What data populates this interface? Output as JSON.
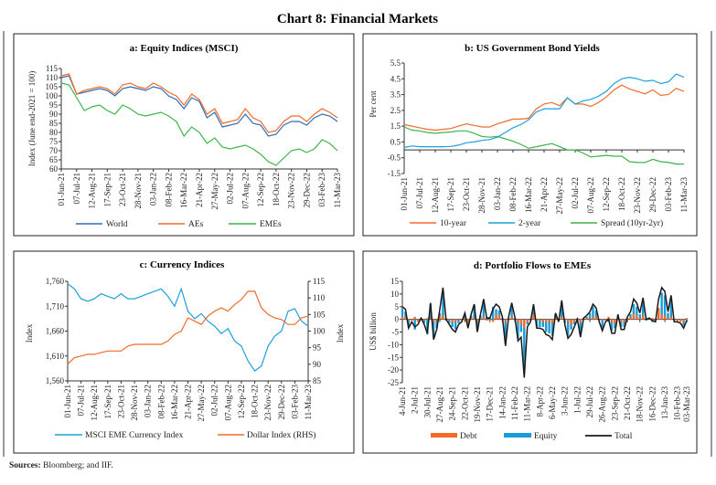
{
  "title": "Chart 8: Financial Markets",
  "sources_label": "Sources:",
  "sources_text": " Bloomberg; and IIF.",
  "chart_data": [
    {
      "type": "line",
      "title": "a: Equity Indices (MSCI)",
      "ylabel": "Index (June end-2021 = 100)",
      "ylim": [
        60,
        115
      ],
      "yticks": [
        60,
        65,
        70,
        75,
        80,
        85,
        90,
        95,
        100,
        105,
        110,
        115
      ],
      "xtick_labels": [
        "01-Jun-21",
        "07-Jul-21",
        "12-Aug-21",
        "17-Sep-21",
        "23-Oct-21",
        "28-Nov-21",
        "03-Jan-22",
        "08-Feb-22",
        "16-Mar-22",
        "21-Apr-22",
        "27-May-22",
        "02-Jul-22",
        "07-Aug-22",
        "12-Sep-22",
        "18-Oct-22",
        "23-Nov-22",
        "29-Dec-22",
        "03-Feb-23",
        "11-Mar-23"
      ],
      "x": [
        "2021-06-01",
        "2021-06-19",
        "2021-07-07",
        "2021-07-25",
        "2021-08-12",
        "2021-08-30",
        "2021-09-17",
        "2021-10-05",
        "2021-10-23",
        "2021-11-10",
        "2021-11-28",
        "2021-12-16",
        "2022-01-03",
        "2022-01-21",
        "2022-02-08",
        "2022-02-26",
        "2022-03-16",
        "2022-04-03",
        "2022-04-21",
        "2022-05-09",
        "2022-05-27",
        "2022-06-14",
        "2022-07-02",
        "2022-07-20",
        "2022-08-07",
        "2022-08-25",
        "2022-09-12",
        "2022-09-30",
        "2022-10-18",
        "2022-11-05",
        "2022-11-23",
        "2022-12-11",
        "2022-12-29",
        "2023-01-16",
        "2023-02-03",
        "2023-02-21",
        "2023-03-11"
      ],
      "legend_position": "bottom",
      "series": [
        {
          "name": "World",
          "color": "#2f6db5",
          "values": [
            110,
            111,
            101,
            102,
            103,
            104,
            103,
            100,
            104,
            105,
            104,
            103,
            105,
            104,
            100,
            98,
            93,
            99,
            97,
            88,
            91,
            83,
            84,
            85,
            90,
            85,
            84,
            78,
            79,
            84,
            86,
            86,
            84,
            88,
            90,
            89,
            86
          ]
        },
        {
          "name": "AEs",
          "color": "#f26b2a",
          "values": [
            111,
            112,
            101,
            103,
            104,
            105,
            104,
            101,
            106,
            107,
            105,
            104,
            107,
            105,
            102,
            100,
            95,
            101,
            98,
            90,
            93,
            85,
            86,
            87,
            93,
            88,
            86,
            80,
            81,
            86,
            89,
            89,
            86,
            90,
            93,
            91,
            88
          ]
        },
        {
          "name": "EMEs",
          "color": "#3cb44b",
          "values": [
            107,
            106,
            99,
            92,
            94,
            95,
            92,
            90,
            95,
            93,
            90,
            89,
            90,
            91,
            89,
            86,
            78,
            83,
            80,
            74,
            77,
            72,
            71,
            72,
            73,
            71,
            68,
            64,
            62,
            66,
            70,
            71,
            69,
            71,
            76,
            74,
            70
          ]
        }
      ]
    },
    {
      "type": "line",
      "title": "b: US  Government Bond Yields",
      "ylabel": "Per cent",
      "ylim": [
        -1.5,
        5.5
      ],
      "yticks": [
        -1.5,
        -0.5,
        0.5,
        1.5,
        2.5,
        3.5,
        4.5,
        5.5
      ],
      "xtick_labels": [
        "01-Jun-21",
        "07-Jul-21",
        "12-Aug-21",
        "17-Sep-21",
        "23-Oct-21",
        "28-Nov-21",
        "03-Jan-22",
        "08-Feb-22",
        "16-Mar-22",
        "21-Apr-22",
        "27-May-22",
        "02-Jul-22",
        "07-Aug-22",
        "12-Sep-22",
        "18-Oct-22",
        "23-Nov-22",
        "29-Dec-22",
        "03-Feb-23",
        "11-Mar-23"
      ],
      "x": [
        "2021-06-01",
        "2021-06-19",
        "2021-07-07",
        "2021-07-25",
        "2021-08-12",
        "2021-08-30",
        "2021-09-17",
        "2021-10-05",
        "2021-10-23",
        "2021-11-10",
        "2021-11-28",
        "2021-12-16",
        "2022-01-03",
        "2022-01-21",
        "2022-02-08",
        "2022-02-26",
        "2022-03-16",
        "2022-04-03",
        "2022-04-21",
        "2022-05-09",
        "2022-05-27",
        "2022-06-14",
        "2022-07-02",
        "2022-07-20",
        "2022-08-07",
        "2022-08-25",
        "2022-09-12",
        "2022-09-30",
        "2022-10-18",
        "2022-11-05",
        "2022-11-23",
        "2022-12-11",
        "2022-12-29",
        "2023-01-16",
        "2023-02-03",
        "2023-02-21",
        "2023-03-11"
      ],
      "legend_position": "bottom",
      "series": [
        {
          "name": "10-year",
          "color": "#f26b2a",
          "values": [
            1.6,
            1.5,
            1.4,
            1.3,
            1.25,
            1.3,
            1.35,
            1.5,
            1.65,
            1.55,
            1.45,
            1.45,
            1.65,
            1.8,
            1.95,
            1.95,
            2.0,
            2.6,
            2.9,
            3.0,
            2.8,
            3.3,
            2.9,
            2.9,
            2.75,
            3.0,
            3.35,
            3.8,
            4.1,
            3.85,
            3.7,
            3.55,
            3.8,
            3.45,
            3.5,
            3.9,
            3.7
          ]
        },
        {
          "name": "2-year",
          "color": "#1ea0dc",
          "values": [
            0.15,
            0.25,
            0.2,
            0.2,
            0.2,
            0.2,
            0.22,
            0.3,
            0.45,
            0.5,
            0.6,
            0.65,
            0.8,
            1.1,
            1.4,
            1.6,
            1.9,
            2.4,
            2.6,
            2.6,
            2.6,
            3.3,
            2.9,
            3.1,
            3.2,
            3.4,
            3.7,
            4.2,
            4.5,
            4.6,
            4.5,
            4.35,
            4.4,
            4.2,
            4.3,
            4.8,
            4.6
          ]
        },
        {
          "name": "Spread (10yr-2yr)",
          "color": "#3cb44b",
          "values": [
            1.45,
            1.25,
            1.2,
            1.1,
            1.05,
            1.1,
            1.13,
            1.2,
            1.2,
            1.05,
            0.85,
            0.8,
            0.85,
            0.7,
            0.55,
            0.35,
            0.1,
            0.2,
            0.3,
            0.4,
            0.2,
            0.0,
            0.0,
            -0.2,
            -0.45,
            -0.4,
            -0.35,
            -0.4,
            -0.4,
            -0.75,
            -0.8,
            -0.8,
            -0.6,
            -0.75,
            -0.8,
            -0.9,
            -0.9
          ]
        }
      ]
    },
    {
      "type": "line",
      "title": "c: Currency Indices",
      "ylabel": "Index",
      "ylabel_right": "Index",
      "ylim": [
        1560,
        1760
      ],
      "yticks": [
        "1,560",
        "1,610",
        "1,660",
        "1,710",
        "1,760"
      ],
      "ylim_right": [
        85,
        115
      ],
      "yticks_right": [
        85,
        90,
        95,
        100,
        105,
        110,
        115
      ],
      "xtick_labels": [
        "01-Jun-21",
        "07-Jul-21",
        "12-Aug-21",
        "17-Sep-21",
        "23-Oct-21",
        "28-Nov-21",
        "03-Jan-22",
        "08-Feb-22",
        "16-Mar-22",
        "21-Apr-22",
        "27-May-22",
        "02-Jul-22",
        "07-Aug-22",
        "12-Sep-22",
        "18-Oct-22",
        "23-Nov-22",
        "29-Dec-22",
        "03-Feb-23",
        "11-Mar-23"
      ],
      "x": [
        "2021-06-01",
        "2021-06-19",
        "2021-07-07",
        "2021-07-25",
        "2021-08-12",
        "2021-08-30",
        "2021-09-17",
        "2021-10-05",
        "2021-10-23",
        "2021-11-10",
        "2021-11-28",
        "2021-12-16",
        "2022-01-03",
        "2022-01-21",
        "2022-02-08",
        "2022-02-26",
        "2022-03-16",
        "2022-04-03",
        "2022-04-21",
        "2022-05-09",
        "2022-05-27",
        "2022-06-14",
        "2022-07-02",
        "2022-07-20",
        "2022-08-07",
        "2022-08-25",
        "2022-09-12",
        "2022-09-30",
        "2022-10-18",
        "2022-11-05",
        "2022-11-23",
        "2022-12-11",
        "2022-12-29",
        "2023-01-16",
        "2023-02-03",
        "2023-02-21",
        "2023-03-11"
      ],
      "legend_position": "bottom",
      "series": [
        {
          "name": "MSCI EME Currency Index",
          "color": "#1ea0dc",
          "axis": "left",
          "values": [
            1755,
            1745,
            1725,
            1720,
            1725,
            1735,
            1730,
            1725,
            1735,
            1725,
            1725,
            1730,
            1735,
            1740,
            1745,
            1730,
            1710,
            1745,
            1700,
            1685,
            1695,
            1680,
            1670,
            1655,
            1665,
            1640,
            1630,
            1600,
            1580,
            1590,
            1630,
            1650,
            1660,
            1700,
            1705,
            1680,
            1670
          ]
        },
        {
          "name": "Dollar Index (RHS)",
          "color": "#f26b2a",
          "axis": "right",
          "values": [
            90,
            92,
            92.5,
            93,
            93,
            93.5,
            94,
            94,
            94,
            95.5,
            96,
            96,
            96,
            96,
            96,
            97,
            99,
            100,
            104,
            103,
            102,
            104.5,
            106,
            107,
            106,
            108,
            109.5,
            112,
            112,
            107,
            105,
            104,
            103.5,
            102,
            102,
            104,
            104.5
          ]
        }
      ]
    },
    {
      "type": "bar",
      "title": "d: Portfolio Flows to EMEs",
      "ylabel": "US$ billion",
      "ylim": [
        -25,
        15
      ],
      "yticks": [
        -25,
        -20,
        -15,
        -10,
        -5,
        0,
        5,
        10,
        15
      ],
      "xtick_labels": [
        "4-Jun-21",
        "2-Jul-21",
        "30-Jul-21",
        "27-Aug-21",
        "24-Sep-21",
        "22-Oct-21",
        "19-Nov-21",
        "17-Dec-21",
        "14-Jan-22",
        "11-Feb-22",
        "11-Mar-22",
        "8-Apr-22",
        "6-May-22",
        "3-Jun-22",
        "1-Jul-22",
        "29-Jul-22",
        "26-Aug-22",
        "23-Sep-22",
        "21-Oct-22",
        "18-Nov-22",
        "16-Dec-22",
        "13-Jan-23",
        "10-Feb-23",
        "03-Mar-23"
      ],
      "frequency": "weekly",
      "legend_position": "bottom",
      "series": [
        {
          "name": "Debt",
          "color": "#f26b2a",
          "kind": "bar",
          "values": [
            1,
            1,
            -0.5,
            -0.5,
            1,
            -1,
            0.5,
            -0.5,
            0.5,
            0.5,
            -1,
            -0.5,
            1.5,
            1.5,
            0.5,
            -0.5,
            -1,
            -1,
            -0.5,
            -0.5,
            0.5,
            -2,
            0.5,
            0.5,
            -1,
            0.5,
            1,
            -0.5,
            -0.5,
            -1,
            2,
            1.5,
            0.5,
            -1,
            0.5,
            1,
            0.5,
            -1,
            -2,
            -3.5,
            -1,
            -0.5,
            2,
            -0.5,
            -0.5,
            -1,
            -1,
            -1,
            -1.5,
            0.5,
            -0.5,
            1,
            -0.5,
            -1,
            -2,
            -1,
            0.5,
            -1,
            0.5,
            0.5,
            0.5,
            1,
            1,
            -0.5,
            -0.5,
            -0.5,
            1,
            -1,
            -2,
            0.5,
            -1,
            -1,
            0.5,
            1,
            2,
            1.5,
            0.5,
            1.5,
            0.5,
            0.5,
            0.5,
            -0.5,
            4.5,
            2,
            1.5,
            0.5,
            1,
            -0.5,
            -0.5,
            -1,
            -1,
            0.5
          ]
        },
        {
          "name": "Equity",
          "color": "#1a9ad6",
          "kind": "bar",
          "values": [
            4,
            3,
            -3,
            -0.5,
            -4,
            -1,
            0,
            -1.5,
            -6,
            6,
            -7,
            -3.5,
            2.5,
            11,
            -0.5,
            -1.5,
            -3,
            -4,
            -1.5,
            -0.5,
            2,
            -1.5,
            1.5,
            5.5,
            -4,
            1.5,
            7,
            1,
            1,
            5,
            4,
            3.5,
            0.5,
            -9.5,
            0.5,
            5.5,
            0.5,
            -7.5,
            -5,
            -19.5,
            -2,
            -0.5,
            4,
            -3,
            -3,
            -3,
            -5,
            -5.5,
            -6.5,
            2,
            -0.5,
            6.5,
            -1.5,
            -6.5,
            -4,
            -2,
            -0.5,
            -6,
            0,
            1,
            2.5,
            5,
            3.5,
            -0.5,
            -4,
            -0.5,
            -1,
            -4.5,
            -3.5,
            1.5,
            -3,
            -3,
            0.5,
            2,
            6,
            5,
            2,
            7,
            -0.5,
            0,
            -1,
            -0.5,
            3.5,
            10.5,
            9.5,
            2.5,
            8.5,
            -0.5,
            -0.5,
            -0.5,
            -2.5,
            -1
          ]
        },
        {
          "name": "Total",
          "color": "#1a1a1a",
          "kind": "line",
          "values": [
            5,
            4,
            -3.5,
            -1,
            -3,
            -2,
            0.5,
            -2,
            -5.5,
            6.5,
            -8,
            -4,
            4,
            12.5,
            0,
            -2,
            -4,
            -5,
            -2,
            -1,
            2.5,
            -3.5,
            2,
            6,
            -5,
            2,
            8,
            0.5,
            0.5,
            4,
            6,
            5,
            1,
            -10.5,
            1,
            6.5,
            1,
            -8.5,
            -7,
            -23,
            -3,
            -1,
            6,
            -3.5,
            -3.5,
            -4,
            -6,
            -6.5,
            -8,
            2.5,
            -1,
            7.5,
            -2,
            -7.5,
            -6,
            -3,
            0,
            -7,
            0.5,
            1.5,
            3,
            6,
            4.5,
            -1,
            -4.5,
            -1,
            0,
            -5.5,
            -5.5,
            2,
            -4,
            -4,
            1,
            3,
            8,
            6.5,
            2.5,
            8.5,
            0,
            0.5,
            -0.5,
            -1,
            8,
            12.5,
            11,
            3,
            9.5,
            -1,
            -1,
            -1.5,
            -3.5,
            -0.5
          ]
        }
      ]
    }
  ]
}
